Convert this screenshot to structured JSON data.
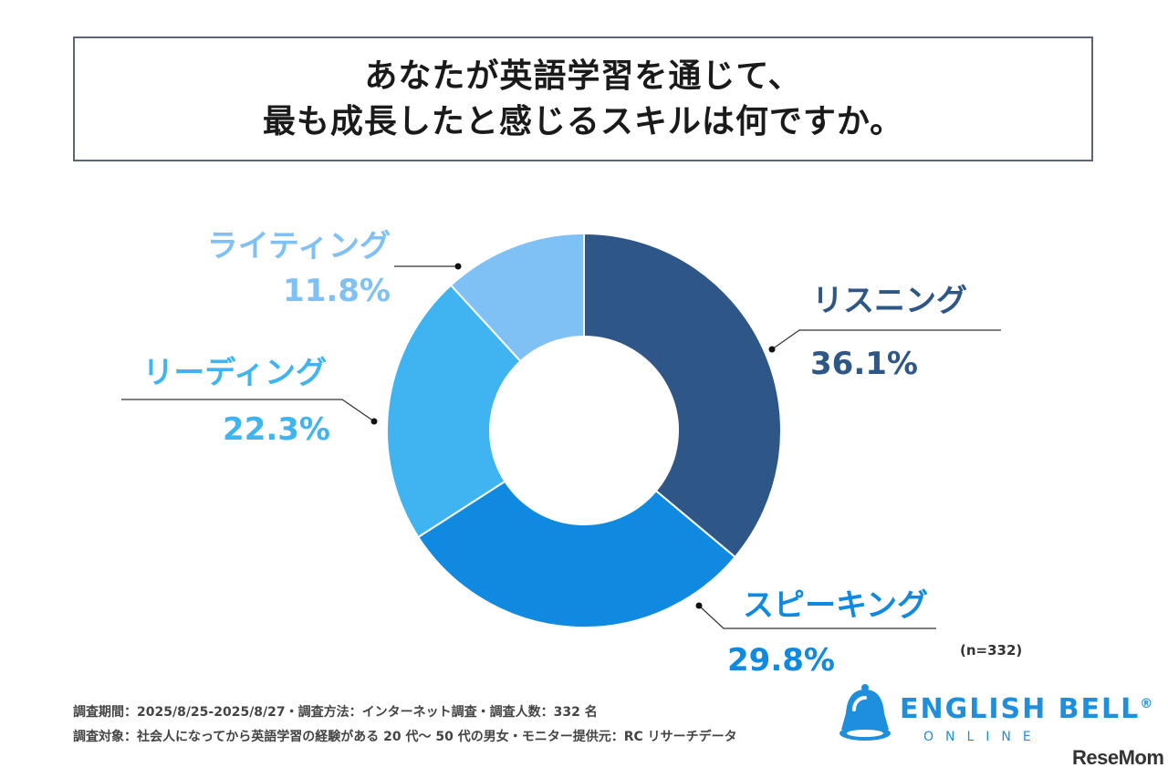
{
  "title": {
    "line1": "あなたが英語学習を通じて、",
    "line2": "最も成長したと感じるスキルは何ですか。"
  },
  "chart_data": {
    "type": "pie",
    "donut": true,
    "categories": [
      "リスニング",
      "スピーキング",
      "リーディング",
      "ライティング"
    ],
    "values": [
      36.1,
      29.8,
      22.3,
      11.8
    ],
    "value_labels": [
      "36.1%",
      "29.8%",
      "22.3%",
      "11.8%"
    ],
    "colors": [
      "#2e5787",
      "#0f8ae0",
      "#3fb4f0",
      "#7fc1f5"
    ],
    "start": "12 o'clock, clockwise",
    "legend": "none (direct labels)"
  },
  "sample_note": "(n=332)",
  "footnotes": {
    "line1": "調査期間：2025/8/25-2025/8/27・調査方法：インターネット調査・調査人数：332 名",
    "line2": "調査対象：社会人になってから英語学習の経験がある 20 代〜 50 代の男女・モニター提供元：RC リサーチデータ"
  },
  "logo": {
    "name": "ENGLISH BELL",
    "mark": "®",
    "sub": "ONLINE",
    "icon": "bell-icon"
  },
  "watermark": "ReseMom"
}
